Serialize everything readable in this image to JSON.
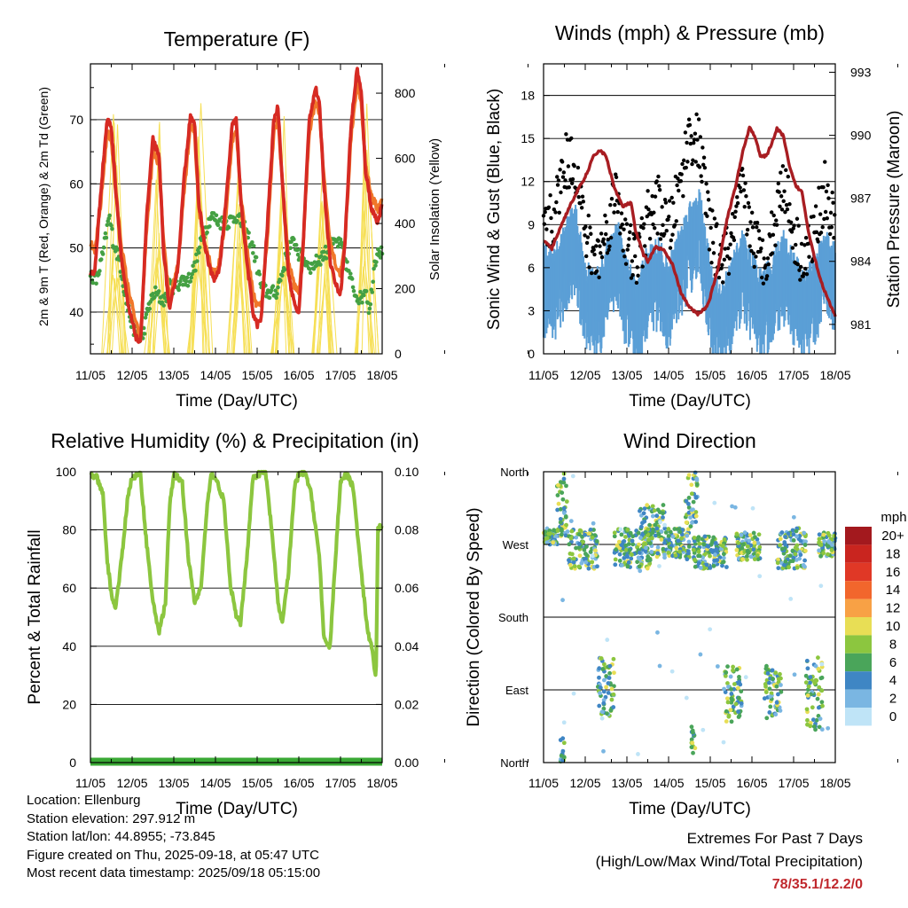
{
  "colors": {
    "temp2m": "#d62a23",
    "temp9m": "#f0772a",
    "dewpoint": "#44a043",
    "insolation": "#f6df55",
    "wind": "#5b9fd6",
    "gust": "#000000",
    "pressure": "#a81d22",
    "rh": "#8cc63f",
    "precip": "#3aa935",
    "extremes": "#c0282d"
  },
  "x_tick_labels": [
    "11/05",
    "12/05",
    "13/05",
    "14/05",
    "15/05",
    "16/05",
    "17/05",
    "18/05"
  ],
  "x_axis_label": "Time (Day/UTC)",
  "chart_data": [
    {
      "type": "line",
      "title": "Temperature (F)",
      "xlabel": "Time (Day/UTC)",
      "ylabel": "2m & 9m T (Red, Orange) & 2m Td (Green)",
      "y2label": "Solar Insolation (Yellow)",
      "x_range": [
        0,
        7
      ],
      "ylim": [
        33.5,
        78.7
      ],
      "yticks": [
        40,
        50,
        60,
        70
      ],
      "y2lim": [
        0,
        890
      ],
      "y2ticks": [
        0,
        200,
        400,
        600,
        800
      ],
      "series": [
        {
          "key": "t2m",
          "axis": "left",
          "x": [
            0,
            0.1,
            0.25,
            0.4,
            0.5,
            0.6,
            0.75,
            0.9,
            1.0,
            1.1,
            1.2,
            1.35,
            1.5,
            1.65,
            1.75,
            1.9,
            2.0,
            2.1,
            2.25,
            2.4,
            2.5,
            2.6,
            2.75,
            2.9,
            3.0,
            3.1,
            3.25,
            3.4,
            3.5,
            3.6,
            3.75,
            3.9,
            4.0,
            4.1,
            4.25,
            4.4,
            4.5,
            4.6,
            4.75,
            4.9,
            5.0,
            5.1,
            5.25,
            5.4,
            5.5,
            5.6,
            5.75,
            5.9,
            6.0,
            6.1,
            6.25,
            6.4,
            6.5,
            6.6,
            6.75,
            6.9,
            7.0
          ],
          "y": [
            46,
            46,
            59,
            70,
            69,
            60,
            48,
            41,
            38.5,
            36,
            35,
            55,
            67,
            64,
            50,
            40,
            44,
            47,
            61,
            71,
            69,
            57,
            50,
            46,
            45,
            47,
            57,
            69,
            70,
            58,
            48,
            40,
            38,
            39,
            54,
            70,
            72,
            61,
            46,
            41,
            40,
            50,
            70,
            75,
            72,
            60,
            48,
            44,
            43,
            50,
            69,
            78,
            74,
            62,
            56,
            54,
            57
          ]
        },
        {
          "key": "t9m",
          "axis": "left",
          "x": [
            0,
            0.1,
            0.25,
            0.4,
            0.5,
            0.6,
            0.75,
            0.9,
            1.0,
            1.1,
            1.2,
            1.35,
            1.5,
            1.65,
            1.75,
            1.9,
            2.0,
            2.1,
            2.25,
            2.4,
            2.5,
            2.6,
            2.75,
            2.9,
            3.0,
            3.1,
            3.25,
            3.4,
            3.5,
            3.6,
            3.75,
            3.9,
            4.0,
            4.1,
            4.25,
            4.4,
            4.5,
            4.6,
            4.75,
            4.9,
            5.0,
            5.1,
            5.25,
            5.4,
            5.5,
            5.6,
            5.75,
            5.9,
            6.0,
            6.1,
            6.25,
            6.4,
            6.5,
            6.6,
            6.75,
            6.9,
            7.0
          ],
          "y": [
            51,
            49,
            57,
            68,
            67,
            59,
            50,
            44,
            41,
            38,
            36,
            53,
            65,
            63,
            51,
            42,
            45,
            47,
            59,
            69,
            68,
            56,
            51,
            47,
            46,
            48,
            55,
            67,
            68,
            59,
            50,
            43,
            41,
            41,
            52,
            68,
            70,
            61,
            48,
            44,
            43,
            50,
            68,
            73,
            71,
            61,
            51,
            47,
            46,
            50,
            67,
            76,
            72,
            63,
            58,
            56,
            58
          ]
        },
        {
          "key": "td2m",
          "axis": "left",
          "x": [
            0,
            0.15,
            0.3,
            0.45,
            0.55,
            0.7,
            0.85,
            1.0,
            1.15,
            1.25,
            1.4,
            1.55,
            1.7,
            1.8,
            1.9,
            2.05,
            2.2,
            2.35,
            2.5,
            2.7,
            2.9,
            3.1,
            3.3,
            3.5,
            3.7,
            3.9,
            4.0,
            4.1,
            4.25,
            4.45,
            4.6,
            4.75,
            4.9,
            5.0,
            5.15,
            5.3,
            5.45,
            5.6,
            5.75,
            5.9,
            6.05,
            6.2,
            6.35,
            6.5,
            6.6,
            6.7,
            6.8,
            6.9,
            7.0
          ],
          "y": [
            46,
            45,
            49,
            55,
            51,
            48,
            42,
            38,
            36,
            36,
            41,
            43,
            42,
            42,
            44,
            44,
            45,
            45,
            47,
            52,
            55,
            54,
            54,
            55,
            53,
            50,
            47,
            44,
            43,
            43,
            46,
            50,
            51,
            49,
            48,
            47,
            48,
            49,
            50,
            51,
            50,
            46,
            43,
            42,
            44,
            40,
            47,
            50,
            49
          ]
        },
        {
          "key": "insol",
          "axis": "right",
          "style": "diurnal-spikes",
          "day_centres": [
            0.6,
            1.6,
            2.6,
            3.6,
            4.6,
            5.6,
            6.6
          ],
          "peaks": [
            840,
            740,
            840,
            800,
            740,
            800,
            780
          ]
        }
      ]
    },
    {
      "type": "scatter",
      "title": "Winds (mph) & Pressure (mb)",
      "xlabel": "Time (Day/UTC)",
      "ylabel": "Sonic Wind & Gust (Blue, Black)",
      "y2label": "Station Pressure (Maroon)",
      "x_range": [
        0,
        7
      ],
      "ylim": [
        0,
        20.2
      ],
      "yticks": [
        0,
        3,
        6,
        9,
        12,
        15,
        18
      ],
      "y2lim": [
        979.6,
        993.4
      ],
      "y2ticks": [
        981,
        984,
        987,
        990,
        993
      ],
      "series": [
        {
          "key": "wind",
          "axis": "left",
          "x": [
            0,
            0.25,
            0.5,
            0.75,
            1.0,
            1.25,
            1.5,
            1.75,
            2.0,
            2.25,
            2.5,
            2.75,
            3.0,
            3.25,
            3.5,
            3.75,
            4.0,
            4.25,
            4.5,
            4.75,
            5.0,
            5.25,
            5.5,
            5.75,
            6.0,
            6.25,
            6.5,
            6.75,
            7.0
          ],
          "y": [
            6,
            5.5,
            7.5,
            9,
            5,
            4,
            6,
            8,
            5,
            3.5,
            6,
            6.5,
            5,
            7,
            9,
            10,
            5,
            3,
            5,
            7,
            5.5,
            4,
            5.5,
            7,
            5.5,
            4,
            5.5,
            7,
            6
          ]
        },
        {
          "key": "gust",
          "axis": "left",
          "x": [
            0,
            0.25,
            0.5,
            0.75,
            1.0,
            1.25,
            1.5,
            1.75,
            2.0,
            2.25,
            2.5,
            2.75,
            3.0,
            3.25,
            3.5,
            3.75,
            4.0,
            4.25,
            4.5,
            4.75,
            5.0,
            5.25,
            5.5,
            5.75,
            6.0,
            6.25,
            6.5,
            6.75,
            7.0
          ],
          "y": [
            8,
            9,
            13,
            13,
            8,
            6,
            8,
            11,
            7,
            6,
            9,
            10,
            8,
            11,
            15,
            14,
            8,
            6,
            7,
            11,
            8,
            6,
            8,
            12,
            8,
            6,
            8,
            11,
            8
          ]
        },
        {
          "key": "pressure",
          "axis": "right",
          "x": [
            0,
            0.2,
            0.4,
            0.6,
            0.8,
            1.0,
            1.2,
            1.35,
            1.5,
            1.7,
            1.9,
            2.1,
            2.2,
            2.4,
            2.5,
            2.7,
            2.9,
            3.1,
            3.3,
            3.5,
            3.7,
            3.9,
            4.0,
            4.2,
            4.4,
            4.6,
            4.8,
            4.95,
            5.1,
            5.2,
            5.35,
            5.45,
            5.6,
            5.75,
            5.9,
            6.05,
            6.2,
            6.35,
            6.5,
            6.65,
            6.8,
            6.95,
            7.0
          ],
          "y": [
            985,
            984.6,
            985.6,
            986.5,
            987.3,
            988,
            989,
            989.3,
            989,
            987.5,
            986.6,
            986.8,
            985.5,
            984.3,
            984,
            984.7,
            984.5,
            983.8,
            982.5,
            981.8,
            981.5,
            981.8,
            982.3,
            983.8,
            986,
            987.5,
            989.4,
            990.4,
            989.8,
            989,
            989,
            989.5,
            990.3,
            990,
            988.5,
            987.6,
            987.3,
            985.5,
            984.2,
            983.1,
            982.3,
            981.6,
            981.4
          ]
        }
      ]
    },
    {
      "type": "line",
      "title": "Relative Humidity (%) & Precipitation (in)",
      "xlabel": "Time (Day/UTC)",
      "ylabel": "Percent & Total Rainfall",
      "x_range": [
        0,
        7
      ],
      "ylim": [
        0,
        100
      ],
      "yticks": [
        0,
        20,
        40,
        60,
        80,
        100
      ],
      "y2lim": [
        0,
        0.1
      ],
      "y2ticks": [
        "0.00",
        "0.02",
        "0.04",
        "0.06",
        "0.08",
        "0.10"
      ],
      "series": [
        {
          "key": "rh",
          "axis": "left",
          "x": [
            0,
            0.15,
            0.3,
            0.4,
            0.5,
            0.6,
            0.75,
            0.9,
            1.0,
            1.2,
            1.35,
            1.5,
            1.65,
            1.8,
            1.9,
            2.0,
            2.2,
            2.35,
            2.5,
            2.65,
            2.8,
            2.9,
            3.0,
            3.2,
            3.35,
            3.5,
            3.6,
            3.75,
            3.9,
            4.0,
            4.2,
            4.35,
            4.5,
            4.6,
            4.75,
            4.9,
            5.0,
            5.15,
            5.3,
            5.5,
            5.6,
            5.75,
            5.9,
            6.0,
            6.15,
            6.3,
            6.5,
            6.65,
            6.75,
            6.85,
            6.9,
            7.0
          ],
          "y": [
            99,
            98,
            92,
            70,
            58,
            53,
            70,
            92,
            98,
            99,
            75,
            55,
            45,
            55,
            88,
            99,
            97,
            70,
            55,
            60,
            88,
            99,
            98,
            90,
            62,
            50,
            48,
            70,
            98,
            99,
            100,
            80,
            55,
            48,
            65,
            95,
            99,
            100,
            92,
            70,
            42,
            40,
            75,
            97,
            99,
            95,
            65,
            45,
            40,
            28,
            80,
            82
          ]
        },
        {
          "key": "precip",
          "axis": "right",
          "x": [
            0,
            7
          ],
          "y": [
            0,
            0
          ]
        }
      ]
    },
    {
      "type": "scatter",
      "title": "Wind Direction",
      "xlabel": "Time (Day/UTC)",
      "ylabel": "Direction (Colored By Speed)",
      "x_range": [
        0,
        7
      ],
      "y_ticks_labels": [
        "North",
        "West",
        "South",
        "East",
        "North"
      ],
      "y_tick_values": [
        360,
        270,
        180,
        90,
        0
      ],
      "legend_title": "mph",
      "legend_labels": [
        "20+",
        "18",
        "16",
        "14",
        "12",
        "10",
        "8",
        "6",
        "4",
        "2",
        "0"
      ],
      "legend_colors": [
        "#a3191e",
        "#c9251f",
        "#e03826",
        "#f2662c",
        "#f8a145",
        "#e8de55",
        "#8cc63f",
        "#4aa55a",
        "#3f86c4",
        "#7ab6e2",
        "#bfe4f7"
      ],
      "clusters": [
        {
          "x": [
            0.0,
            0.35
          ],
          "dir": [
            270,
            290
          ]
        },
        {
          "x": [
            0.3,
            0.6
          ],
          "dir": [
            280,
            360
          ]
        },
        {
          "x": [
            0.4,
            0.5
          ],
          "dir": [
            0,
            30
          ]
        },
        {
          "x": [
            0.6,
            1.3
          ],
          "dir": [
            240,
            290
          ]
        },
        {
          "x": [
            1.3,
            1.7
          ],
          "dir": [
            55,
            130
          ]
        },
        {
          "x": [
            1.7,
            2.6
          ],
          "dir": [
            240,
            290
          ]
        },
        {
          "x": [
            2.3,
            2.9
          ],
          "dir": [
            250,
            320
          ]
        },
        {
          "x": [
            2.9,
            3.5
          ],
          "dir": [
            250,
            290
          ]
        },
        {
          "x": [
            3.4,
            3.7
          ],
          "dir": [
            290,
            360
          ]
        },
        {
          "x": [
            3.55,
            3.65
          ],
          "dir": [
            10,
            45
          ]
        },
        {
          "x": [
            3.6,
            4.4
          ],
          "dir": [
            240,
            280
          ]
        },
        {
          "x": [
            4.35,
            4.75
          ],
          "dir": [
            50,
            120
          ]
        },
        {
          "x": [
            4.6,
            5.2
          ],
          "dir": [
            250,
            285
          ]
        },
        {
          "x": [
            5.3,
            5.7
          ],
          "dir": [
            55,
            120
          ]
        },
        {
          "x": [
            5.6,
            6.3
          ],
          "dir": [
            240,
            290
          ]
        },
        {
          "x": [
            6.3,
            6.7
          ],
          "dir": [
            40,
            130
          ]
        },
        {
          "x": [
            6.6,
            7.0
          ],
          "dir": [
            255,
            285
          ]
        }
      ]
    }
  ],
  "station": {
    "location": "Location: Ellenburg",
    "elevation": "Station elevation: 297.912 m",
    "latlon": "Station lat/lon: 44.8955; -73.845",
    "created": "Figure created on Thu, 2025-09-18, at 05:47 UTC",
    "recent": "Most recent data timestamp: 2025/09/18 05:15:00"
  },
  "extremes": {
    "heading": "Extremes For Past 7 Days",
    "subheading": "(High/Low/Max Wind/Total Precipitation)",
    "values": "78/35.1/12.2/0"
  }
}
